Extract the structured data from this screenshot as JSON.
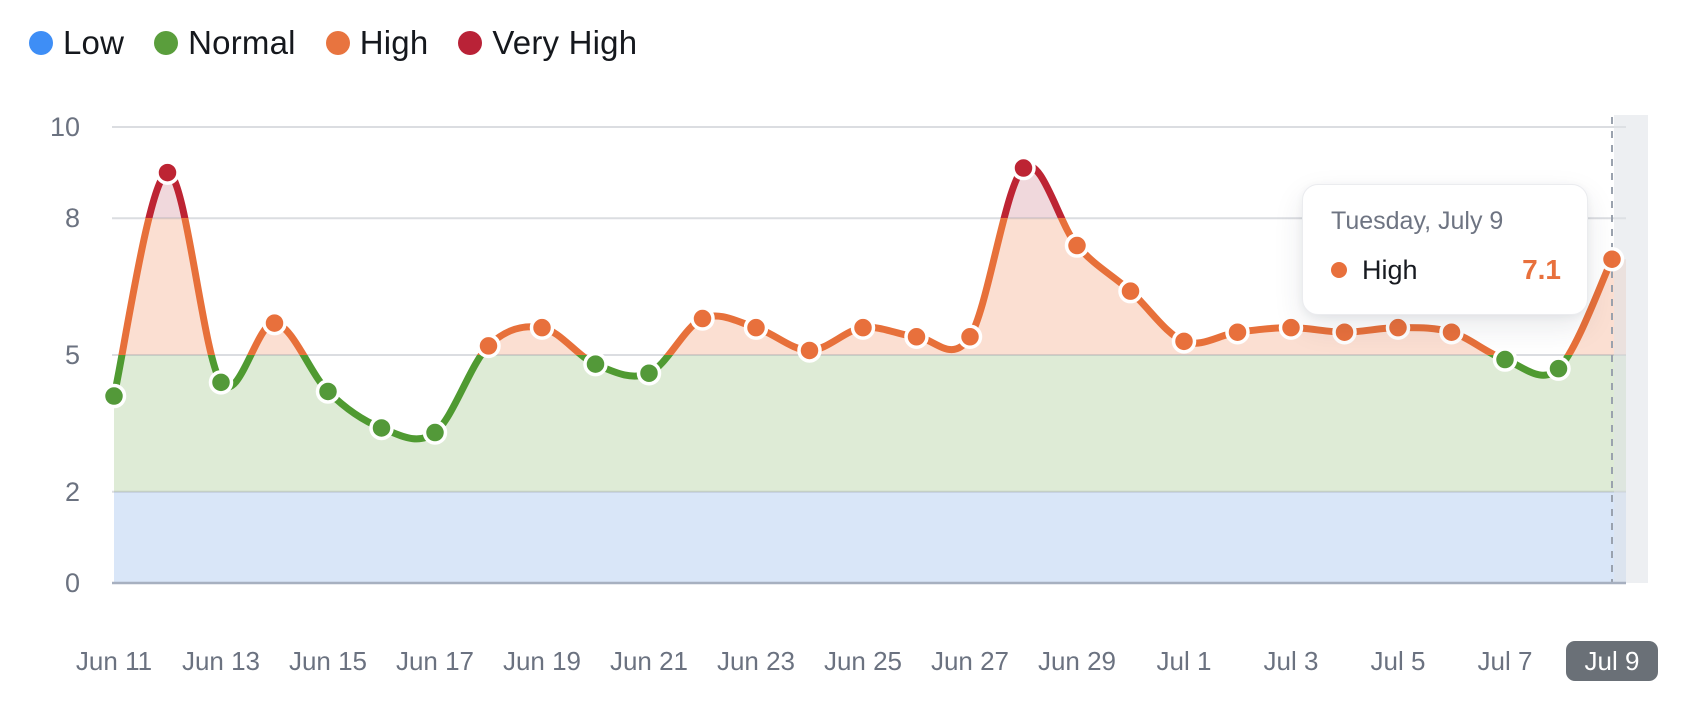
{
  "legend": {
    "items": [
      {
        "label": "Low",
        "color": "#3e8ef6"
      },
      {
        "label": "Normal",
        "color": "#5a9e3c"
      },
      {
        "label": "High",
        "color": "#e8743f"
      },
      {
        "label": "Very High",
        "color": "#b92237"
      }
    ]
  },
  "tooltip": {
    "title": "Tuesday, July 9",
    "series": "High",
    "value": "7.1",
    "accent": "#e8703c"
  },
  "chart_data": {
    "type": "line",
    "x": [
      "Jun 11",
      "Jun 12",
      "Jun 13",
      "Jun 14",
      "Jun 15",
      "Jun 16",
      "Jun 17",
      "Jun 18",
      "Jun 19",
      "Jun 20",
      "Jun 21",
      "Jun 22",
      "Jun 23",
      "Jun 24",
      "Jun 25",
      "Jun 26",
      "Jun 27",
      "Jun 28",
      "Jun 29",
      "Jun 30",
      "Jul 1",
      "Jul 2",
      "Jul 3",
      "Jul 4",
      "Jul 5",
      "Jul 6",
      "Jul 7",
      "Jul 8",
      "Jul 9"
    ],
    "values": [
      4.1,
      9.0,
      4.4,
      5.7,
      4.2,
      3.4,
      3.3,
      5.2,
      5.6,
      4.8,
      4.6,
      5.8,
      5.6,
      5.1,
      5.6,
      5.4,
      5.4,
      9.1,
      7.4,
      6.4,
      5.3,
      5.5,
      5.6,
      5.5,
      5.6,
      5.5,
      4.9,
      4.7,
      7.1
    ],
    "ylim": [
      0,
      10
    ],
    "yticks": [
      0,
      2,
      5,
      8,
      10
    ],
    "x_ticks_every": 2,
    "grid": true,
    "legend_position": "top-left",
    "selected_point": {
      "x": "Jul 9",
      "value": 7.1,
      "band": "High"
    },
    "bands": [
      {
        "label": "Low",
        "min": 0,
        "max": 2,
        "point_color": "#3e8ef6",
        "line_color": "#3e8ef6",
        "fill_color": "#d9e6f8"
      },
      {
        "label": "Normal",
        "min": 2,
        "max": 5,
        "point_color": "#539939",
        "line_color": "#4f9a31",
        "fill_color": "#deebd6"
      },
      {
        "label": "High",
        "min": 5,
        "max": 8,
        "point_color": "#e8703c",
        "line_color": "#e7703a",
        "fill_color": "#fbdfd2"
      },
      {
        "label": "Very High",
        "min": 8,
        "max": 10,
        "point_color": "#bd2433",
        "line_color": "#bd2433",
        "fill_color": "#f0d8dc"
      }
    ]
  }
}
